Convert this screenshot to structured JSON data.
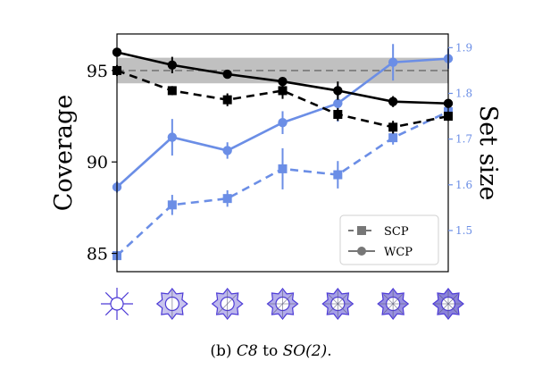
{
  "chart_data": {
    "type": "line",
    "categories": [
      0,
      1,
      2,
      3,
      4,
      5,
      6
    ],
    "left_axis": {
      "label": "Coverage",
      "ylim": [
        84,
        97
      ],
      "ticks": [
        85,
        90,
        95
      ]
    },
    "right_axis": {
      "label": "Set size",
      "ylim": [
        1.41,
        1.93
      ],
      "ticks": [
        1.5,
        1.6,
        1.7,
        1.8,
        1.9
      ]
    },
    "target_line": {
      "value": 95,
      "band": [
        94.3,
        95.7
      ]
    },
    "series": [
      {
        "name": "SCP",
        "axis": "left",
        "color": "#000000",
        "dash": true,
        "marker": "square",
        "values": [
          95.0,
          93.9,
          93.4,
          93.9,
          92.6,
          91.9,
          92.5
        ],
        "err": [
          0.3,
          0.25,
          0.35,
          0.45,
          0.35,
          0.35,
          0.25
        ]
      },
      {
        "name": "WCP",
        "axis": "left",
        "color": "#000000",
        "dash": false,
        "marker": "circle",
        "values": [
          96.0,
          95.3,
          94.8,
          94.4,
          93.9,
          93.3,
          93.2
        ],
        "err": [
          0.15,
          0.45,
          0.2,
          0.15,
          0.5,
          0.3,
          0.2
        ]
      },
      {
        "name": "SCP",
        "axis": "right",
        "color": "#6b8ee6",
        "dash": true,
        "marker": "square",
        "values": [
          1.445,
          1.556,
          1.57,
          1.635,
          1.622,
          1.703,
          1.76
        ],
        "err": [
          0.008,
          0.022,
          0.018,
          0.045,
          0.03,
          0.015,
          0.012
        ]
      },
      {
        "name": "WCP",
        "axis": "right",
        "color": "#6b8ee6",
        "dash": false,
        "marker": "circle",
        "values": [
          1.595,
          1.704,
          1.675,
          1.736,
          1.778,
          1.868,
          1.876
        ],
        "err": [
          0.012,
          0.04,
          0.018,
          0.025,
          0.04,
          0.04,
          0.022
        ]
      }
    ],
    "legend": {
      "position": "bottom-right",
      "entries": [
        "SCP",
        "WCP"
      ]
    },
    "grid": false
  },
  "caption": {
    "prefix": "(b) ",
    "from": "C8",
    "mid": " to ",
    "to": "SO(2)",
    "suffix": "."
  },
  "colors": {
    "glyph": "#4d3bd6",
    "band": "#c0c0c0"
  }
}
